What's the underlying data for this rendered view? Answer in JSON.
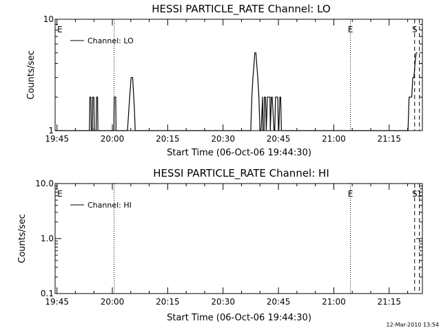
{
  "footer": {
    "timestamp": "12-Mar-2010 13:54"
  },
  "chart_data": [
    {
      "type": "line",
      "title": "HESSI PARTICLE_RATE Channel: LO",
      "xlabel": "Start Time (06-Oct-06 19:44:30)",
      "ylabel": "Counts/sec",
      "xscale": "time (minutes after 19:44:30)",
      "yscale": "log",
      "xlim": [
        0,
        99.5
      ],
      "ylim": [
        1,
        10
      ],
      "x_ticks": [
        {
          "m": 0.5,
          "label": "19:45"
        },
        {
          "m": 15.5,
          "label": "20:00"
        },
        {
          "m": 30.5,
          "label": "20:15"
        },
        {
          "m": 45.5,
          "label": "20:30"
        },
        {
          "m": 60.5,
          "label": "20:45"
        },
        {
          "m": 75.5,
          "label": "21:00"
        },
        {
          "m": 90.5,
          "label": "21:15"
        }
      ],
      "y_ticks": [
        {
          "v": 1,
          "label": "1"
        },
        {
          "v": 10,
          "label": "10"
        }
      ],
      "grid": false,
      "legend_position": "top-left",
      "series": [
        {
          "name": "Channel: LO",
          "x": [
            0,
            9.3,
            9.4,
            9.7,
            9.8,
            10.1,
            10.2,
            10.5,
            10.6,
            11.1,
            11.2,
            11.5,
            11.6,
            12.1,
            15.9,
            16.0,
            16.4,
            16.5,
            19.6,
            20.2,
            20.6,
            21.0,
            21.3,
            21.5,
            21.7,
            21.8,
            53.0,
            53.3,
            53.6,
            53.9,
            54.1,
            54.4,
            54.6,
            54.9,
            55.2,
            55.5,
            55.8,
            56.2,
            56.3,
            56.6,
            56.7,
            57.0,
            57.2,
            57.5,
            57.9,
            58.2,
            58.3,
            58.6,
            58.8,
            59.3,
            59.5,
            59.7,
            60.3,
            60.5,
            60.6,
            60.9,
            61.1,
            61.3,
            61.7,
            62.0,
            62.2,
            95.6,
            95.9,
            96.3,
            96.6,
            96.9,
            97.2,
            97.5,
            97.8,
            98.1
          ],
          "y": [
            1,
            1,
            2,
            2,
            1,
            1,
            2,
            2,
            1,
            1,
            2,
            2,
            1,
            1,
            1,
            2,
            2,
            1,
            1,
            2,
            3,
            3,
            2,
            1.5,
            1,
            1,
            1,
            2,
            3,
            4,
            5,
            5,
            4,
            3,
            2,
            1,
            1,
            2,
            1,
            1,
            2,
            2,
            1,
            2,
            2,
            2,
            1,
            2,
            2,
            1,
            1,
            2,
            2,
            1,
            1,
            2,
            2,
            1,
            1,
            1,
            1,
            1,
            2,
            2,
            2,
            3,
            3,
            4,
            5,
            5
          ]
        }
      ],
      "annotations": [
        {
          "type": "vline",
          "m": 16.0,
          "style": "dotted",
          "label": ""
        },
        {
          "type": "vline",
          "m": 80.0,
          "style": "dotted",
          "label": "E"
        },
        {
          "type": "vline",
          "m": 97.4,
          "style": "dashed",
          "label": "S"
        },
        {
          "type": "vline",
          "m": 98.7,
          "style": "dashed",
          "label": ""
        },
        {
          "type": "text",
          "m": 0.2,
          "text": "E"
        }
      ]
    },
    {
      "type": "line",
      "title": "HESSI PARTICLE_RATE Channel: HI",
      "xlabel": "Start Time (06-Oct-06 19:44:30)",
      "ylabel": "Counts/sec",
      "xscale": "time (minutes after 19:44:30)",
      "yscale": "log",
      "xlim": [
        0,
        99.5
      ],
      "ylim": [
        0.1,
        10
      ],
      "x_ticks": [
        {
          "m": 0.5,
          "label": "19:45"
        },
        {
          "m": 15.5,
          "label": "20:00"
        },
        {
          "m": 30.5,
          "label": "20:15"
        },
        {
          "m": 45.5,
          "label": "20:30"
        },
        {
          "m": 60.5,
          "label": "20:45"
        },
        {
          "m": 75.5,
          "label": "21:00"
        },
        {
          "m": 90.5,
          "label": "21:15"
        }
      ],
      "y_ticks": [
        {
          "v": 0.1,
          "label": "0.1"
        },
        {
          "v": 1,
          "label": "1.0"
        },
        {
          "v": 10,
          "label": "10.0"
        }
      ],
      "grid": false,
      "legend_position": "top-left",
      "series": [
        {
          "name": "Channel: HI",
          "x": [],
          "y": []
        }
      ],
      "annotations": [
        {
          "type": "vline",
          "m": 16.0,
          "style": "dotted",
          "label": ""
        },
        {
          "type": "vline",
          "m": 80.0,
          "style": "dotted",
          "label": "E"
        },
        {
          "type": "vline",
          "m": 97.4,
          "style": "dashed",
          "label": "S"
        },
        {
          "type": "vline",
          "m": 98.7,
          "style": "dashed",
          "label": "1"
        },
        {
          "type": "text",
          "m": 0.2,
          "text": "E"
        }
      ]
    }
  ]
}
